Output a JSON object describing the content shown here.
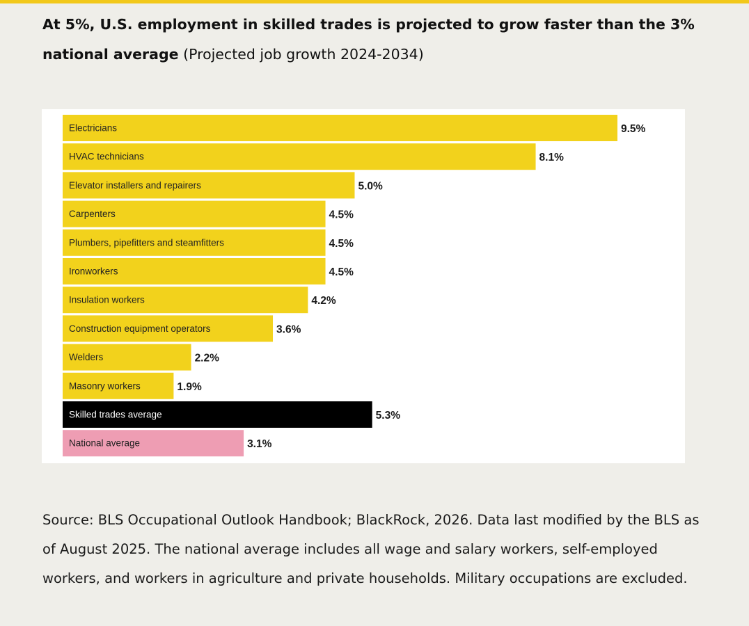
{
  "headline": {
    "bold": "At 5%, U.S. employment in skilled trades is projected to grow faster than the 3% national average",
    "normal": "(Projected job growth 2024-2034)"
  },
  "chart_data": {
    "type": "bar",
    "orientation": "horizontal",
    "categories": [
      "Electricians",
      "HVAC technicians",
      "Elevator installers and repairers",
      "Carpenters",
      "Plumbers, pipefitters and steamfitters",
      "Ironworkers",
      "Insulation workers",
      "Construction equipment operators",
      "Welders",
      "Masonry workers",
      "Skilled trades average",
      "National average"
    ],
    "values": [
      9.5,
      8.1,
      5.0,
      4.5,
      4.5,
      4.5,
      4.2,
      3.6,
      2.2,
      1.9,
      5.3,
      3.1
    ],
    "value_labels": [
      "9.5%",
      "8.1%",
      "5.0%",
      "4.5%",
      "4.5%",
      "4.5%",
      "4.2%",
      "3.6%",
      "2.2%",
      "1.9%",
      "5.3%",
      "3.1%"
    ],
    "bar_colors": [
      "#f2d21c",
      "#f2d21c",
      "#f2d21c",
      "#f2d21c",
      "#f2d21c",
      "#f2d21c",
      "#f2d21c",
      "#f2d21c",
      "#f2d21c",
      "#f2d21c",
      "#000000",
      "#ee9db3"
    ],
    "label_colors": [
      "#222222",
      "#222222",
      "#222222",
      "#222222",
      "#222222",
      "#222222",
      "#222222",
      "#222222",
      "#222222",
      "#222222",
      "#ffffff",
      "#222222"
    ],
    "xlim": [
      0,
      9.5
    ],
    "grid": false,
    "title": "",
    "xlabel": "",
    "ylabel": ""
  },
  "source_text": "Source: BLS Occupational Outlook Handbook; BlackRock, 2026. Data last modified by the BLS as of August 2025. The national average includes all wage and salary workers, self-employed workers, and workers in agriculture and private households. Military occupations are excluded."
}
